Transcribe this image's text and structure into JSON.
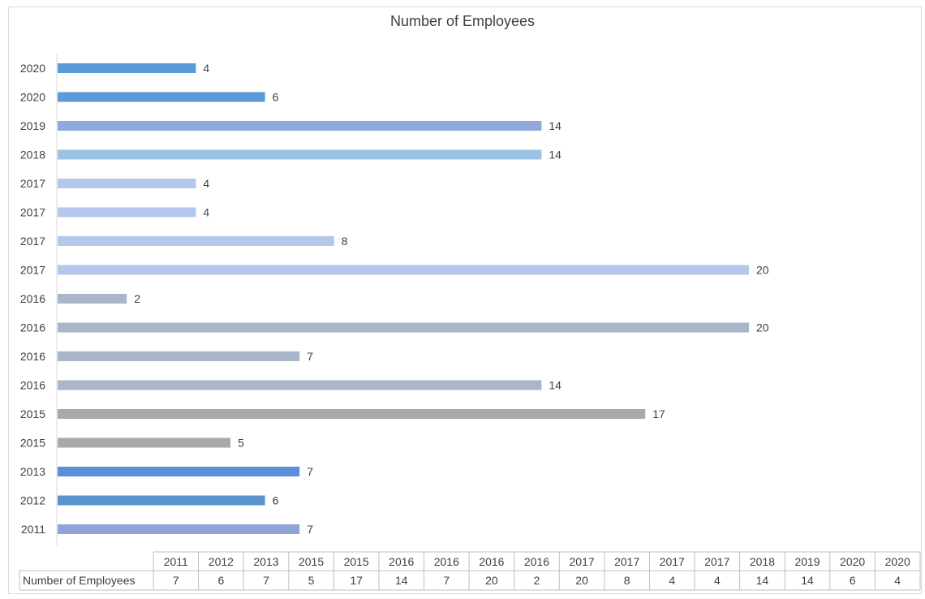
{
  "chart_data": {
    "type": "bar",
    "orientation": "horizontal",
    "title": "Number of Employees",
    "series_name": "Number of Employees",
    "categories": [
      "2011",
      "2012",
      "2013",
      "2015",
      "2015",
      "2016",
      "2016",
      "2016",
      "2016",
      "2017",
      "2017",
      "2017",
      "2017",
      "2018",
      "2019",
      "2020",
      "2020"
    ],
    "values": [
      7,
      6,
      7,
      5,
      17,
      14,
      7,
      20,
      2,
      20,
      8,
      4,
      4,
      14,
      14,
      6,
      4
    ],
    "colors": [
      "#8fa3d6",
      "#5b93cf",
      "#5b8fd9",
      "#a9a9a9",
      "#a9a9a9",
      "#a9b5c8",
      "#a9b5c8",
      "#a9b5c8",
      "#a9b5c8",
      "#b3c8ec",
      "#b3c8ec",
      "#b3c8ec",
      "#b3c8ec",
      "#9cc3e6",
      "#8fa9dd",
      "#5b9bd5",
      "#5b9bd5"
    ],
    "xlim": [
      0,
      20
    ],
    "grid": false,
    "data_table": true
  }
}
